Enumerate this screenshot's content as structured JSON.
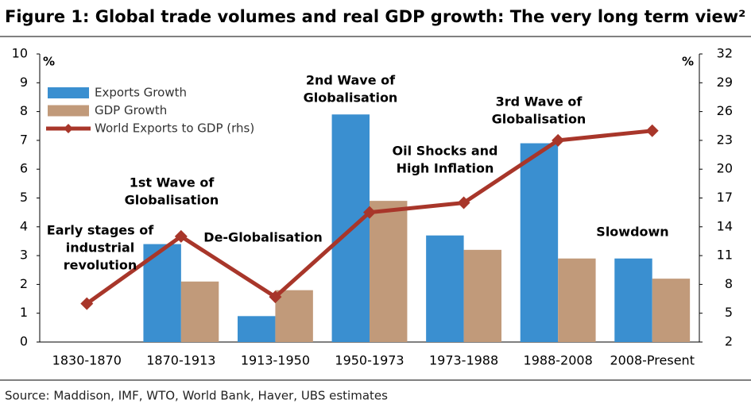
{
  "chart_data": {
    "type": "bar-line",
    "title": "Figure 1: Global trade volumes and real GDP growth: The very long term view²",
    "source": "Source:  Maddison, IMF, WTO, World Bank, Haver, UBS estimates",
    "ylabel": "%",
    "y2label": "%",
    "categories": [
      "1830-1870",
      "1870-1913",
      "1913-1950",
      "1950-1973",
      "1973-1988",
      "1988-2008",
      "2008-Present"
    ],
    "series": [
      {
        "name": "Exports Growth",
        "color": "#3a8fd0",
        "type": "bar",
        "values": [
          null,
          3.4,
          0.9,
          7.9,
          3.7,
          6.9,
          2.9
        ]
      },
      {
        "name": "GDP Growth",
        "color": "#c19a7a",
        "type": "bar",
        "values": [
          null,
          2.1,
          1.8,
          4.9,
          3.2,
          2.9,
          2.2
        ]
      },
      {
        "name": "World Exports to GDP (rhs)",
        "color": "#a8362a",
        "type": "line",
        "axis": "y2",
        "values": [
          6.0,
          13.0,
          6.7,
          15.5,
          16.5,
          23.0,
          24.0
        ]
      }
    ],
    "annotations": [
      [
        "Early stages of",
        "industrial",
        "revolution"
      ],
      [
        "1st Wave of",
        "Globalisation"
      ],
      [
        "De-Globalisation"
      ],
      [
        "2nd Wave of",
        "Globalisation"
      ],
      [
        "Oil Shocks and",
        "High Inflation"
      ],
      [
        "3rd Wave of",
        "Globalisation"
      ],
      [
        "Slowdown"
      ]
    ],
    "ylim": [
      0,
      10
    ],
    "yticks": [
      0,
      1,
      2,
      3,
      4,
      5,
      6,
      7,
      8,
      9,
      10
    ],
    "y2lim": [
      2,
      32
    ],
    "y2ticks": [
      2,
      5,
      8,
      11,
      14,
      17,
      20,
      23,
      26,
      29,
      32
    ]
  }
}
